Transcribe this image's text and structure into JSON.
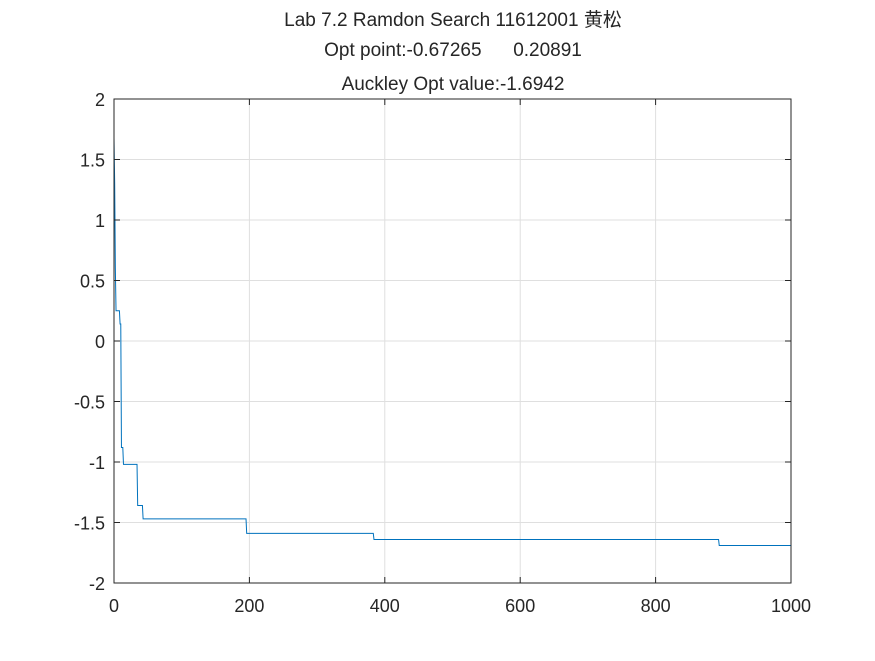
{
  "chart_data": {
    "type": "line",
    "title": [
      "Lab 7.2 Ramdon Search 11612001 黄松",
      "Opt point:-0.67265      0.20891",
      "Auckley Opt value:-1.6942"
    ],
    "xlabel": "",
    "ylabel": "",
    "xlim": [
      0,
      1000
    ],
    "ylim": [
      -2,
      2
    ],
    "xticks": [
      0,
      200,
      400,
      600,
      800,
      1000
    ],
    "xtick_labels": [
      "0",
      "200",
      "400",
      "600",
      "800",
      "1000"
    ],
    "yticks": [
      -2,
      -1.5,
      -1,
      -0.5,
      0,
      0.5,
      1,
      1.5,
      2
    ],
    "ytick_labels": [
      "-2",
      "-1.5",
      "-1",
      "-0.5",
      "0",
      "0.5",
      "1",
      "1.5",
      "2"
    ],
    "grid": true,
    "line_color": "#0072BD",
    "series": [
      {
        "x": [
          0,
          1,
          2,
          3,
          4,
          8,
          9,
          10,
          11,
          13,
          14,
          34,
          35,
          42,
          43,
          195,
          196,
          383,
          384,
          893,
          894,
          1000
        ],
        "y": [
          1.68,
          1.3,
          0.6,
          0.25,
          0.25,
          0.25,
          0.14,
          0.14,
          -0.88,
          -0.88,
          -1.02,
          -1.02,
          -1.36,
          -1.36,
          -1.47,
          -1.47,
          -1.59,
          -1.59,
          -1.64,
          -1.64,
          -1.69,
          -1.69
        ]
      }
    ]
  }
}
